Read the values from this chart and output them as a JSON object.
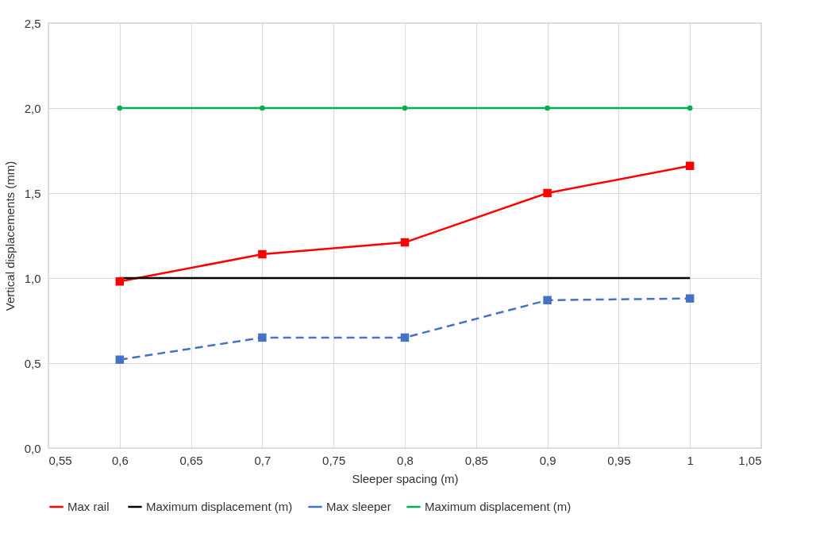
{
  "chart_data": {
    "type": "line",
    "xlabel": "Sleeper spacing (m)",
    "ylabel": "Vertical displacements (mm)",
    "x": [
      0.6,
      0.7,
      0.8,
      0.9,
      1
    ],
    "series": [
      {
        "name": "Max  rail",
        "color": "#ff0000",
        "marker": "square",
        "line_style": "solid",
        "values": [
          0.98,
          1.14,
          1.21,
          1.5,
          1.66
        ]
      },
      {
        "name": "Maximum displacement (m)",
        "color": "#000000",
        "marker": "none",
        "line_style": "solid",
        "values": [
          1,
          1,
          1,
          1,
          1
        ]
      },
      {
        "name": "Max sleeper",
        "color": "#4472c4",
        "marker": "square",
        "line_style": "dashed",
        "values": [
          0.52,
          0.65,
          0.65,
          0.87,
          0.88
        ]
      },
      {
        "name": "Maximum displacement (m)",
        "color": "#00b050",
        "marker": "circle",
        "line_style": "solid",
        "values": [
          2,
          2,
          2,
          2,
          2
        ]
      }
    ],
    "xlim": [
      0.55,
      1.05
    ],
    "xticks": [
      {
        "value": 0.55,
        "label": "0,55"
      },
      {
        "value": 0.6,
        "label": "0,6"
      },
      {
        "value": 0.65,
        "label": "0,65"
      },
      {
        "value": 0.7,
        "label": "0,7"
      },
      {
        "value": 0.75,
        "label": "0,75"
      },
      {
        "value": 0.8,
        "label": "0,8"
      },
      {
        "value": 0.85,
        "label": "0,85"
      },
      {
        "value": 0.9,
        "label": "0,9"
      },
      {
        "value": 0.95,
        "label": "0,95"
      },
      {
        "value": 1,
        "label": "1"
      },
      {
        "value": 1.05,
        "label": "1,05"
      }
    ],
    "ylim": [
      0,
      2.5
    ],
    "yticks": [
      {
        "value": 0,
        "label": "0,0"
      },
      {
        "value": 0.5,
        "label": "0,5"
      },
      {
        "value": 1,
        "label": "1,0"
      },
      {
        "value": 1.5,
        "label": "1,5"
      },
      {
        "value": 2,
        "label": "2,0"
      },
      {
        "value": 2.5,
        "label": "2,5"
      }
    ],
    "grid": true,
    "legend": "bottom"
  }
}
